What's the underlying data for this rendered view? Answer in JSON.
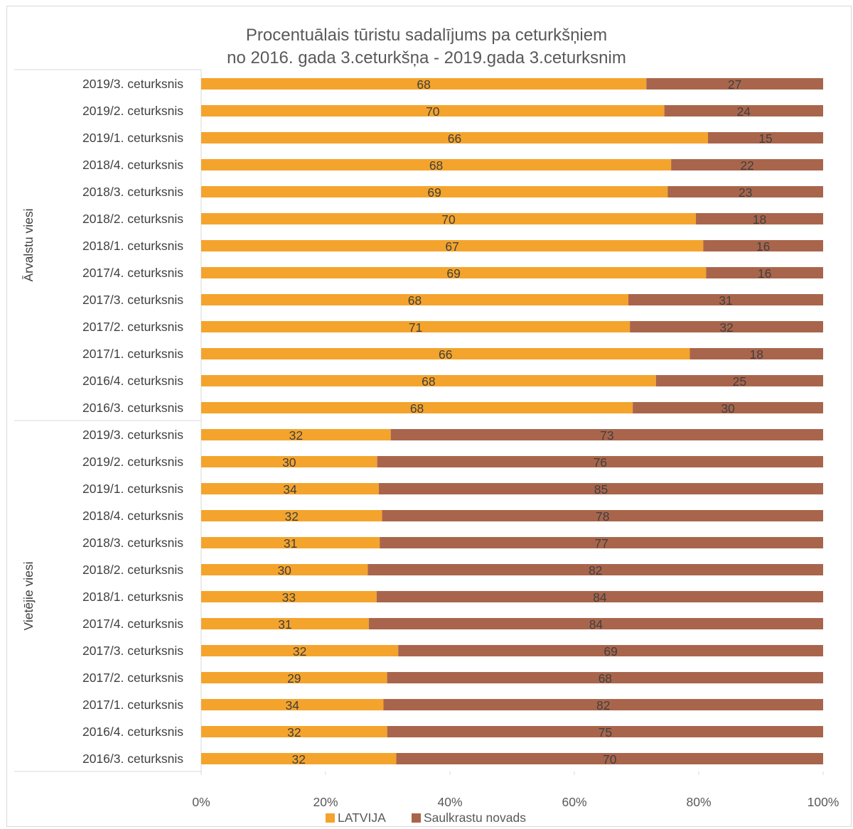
{
  "chart_data": {
    "type": "bar",
    "orientation": "horizontal",
    "stacking": "percent",
    "title": [
      "Procentuālais tūristu sadalījums pa ceturkšņiem",
      "no 2016. gada 3.ceturkšņa - 2019.gada 3.ceturksnim"
    ],
    "groups": [
      {
        "name": "Ārvalstu viesi",
        "categories": [
          "2019/3. ceturksnis",
          "2019/2. ceturksnis",
          "2019/1. ceturksnis",
          "2018/4. ceturksnis",
          "2018/3. ceturksnis",
          "2018/2. ceturksnis",
          "2018/1. ceturksnis",
          "2017/4. ceturksnis",
          "2017/3. ceturksnis",
          "2017/2. ceturksnis",
          "2017/1. ceturksnis",
          "2016/4. ceturksnis",
          "2016/3. ceturksnis"
        ],
        "series": [
          {
            "name": "LATVIJA",
            "values": [
              68,
              70,
              66,
              68,
              69,
              70,
              67,
              69,
              68,
              71,
              66,
              68,
              68
            ]
          },
          {
            "name": "Saulkrastu novads",
            "values": [
              27,
              24,
              15,
              22,
              23,
              18,
              16,
              16,
              31,
              32,
              18,
              25,
              30
            ]
          }
        ]
      },
      {
        "name": "Vietējie viesi",
        "categories": [
          "2019/3. ceturksnis",
          "2019/2. ceturksnis",
          "2019/1. ceturksnis",
          "2018/4. ceturksnis",
          "2018/3. ceturksnis",
          "2018/2. ceturksnis",
          "2018/1. ceturksnis",
          "2017/4. ceturksnis",
          "2017/3. ceturksnis",
          "2017/2. ceturksnis",
          "2017/1. ceturksnis",
          "2016/4. ceturksnis",
          "2016/3. ceturksnis"
        ],
        "series": [
          {
            "name": "LATVIJA",
            "values": [
              32,
              30,
              34,
              32,
              31,
              30,
              33,
              31,
              32,
              29,
              34,
              32,
              32
            ]
          },
          {
            "name": "Saulkrastu novads",
            "values": [
              73,
              76,
              85,
              78,
              77,
              82,
              84,
              84,
              69,
              68,
              82,
              75,
              70
            ]
          }
        ]
      }
    ],
    "xlim": [
      0,
      100
    ],
    "xticks": [
      "0%",
      "20%",
      "40%",
      "60%",
      "80%",
      "100%"
    ],
    "grid": false,
    "legend_position": "bottom",
    "colors": {
      "LATVIJA": "#f4a42c",
      "Saulkrastu novads": "#a9654b"
    }
  }
}
